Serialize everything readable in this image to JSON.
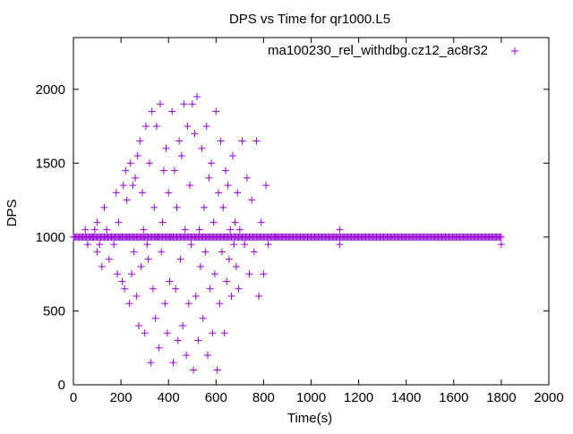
{
  "chart_data": {
    "type": "scatter",
    "title": "DPS vs Time for qr1000.L5",
    "xlabel": "Time(s)",
    "ylabel": "DPS",
    "xlim": [
      0,
      2000
    ],
    "ylim": [
      0,
      2350
    ],
    "xticks": [
      0,
      200,
      400,
      600,
      800,
      1000,
      1200,
      1400,
      1600,
      1800,
      2000
    ],
    "yticks": [
      0,
      500,
      1000,
      1500,
      2000
    ],
    "grid": false,
    "legend_position": "top-right",
    "marker": "+",
    "series": [
      {
        "name": "ma100230_rel_withdbg.cz12_ac8r32",
        "color": "#9400d3",
        "baseline": {
          "x_start": 0,
          "x_end": 1800,
          "x_step": 5,
          "y": 1000
        },
        "points": [
          [
            30,
            1000
          ],
          [
            50,
            1050
          ],
          [
            60,
            950
          ],
          [
            80,
            1000
          ],
          [
            90,
            1050
          ],
          [
            100,
            900
          ],
          [
            100,
            1100
          ],
          [
            110,
            950
          ],
          [
            120,
            800
          ],
          [
            130,
            1200
          ],
          [
            140,
            1050
          ],
          [
            150,
            850
          ],
          [
            160,
            1000
          ],
          [
            170,
            950
          ],
          [
            180,
            1300
          ],
          [
            185,
            750
          ],
          [
            190,
            1100
          ],
          [
            200,
            1000
          ],
          [
            205,
            700
          ],
          [
            210,
            1350
          ],
          [
            215,
            650
          ],
          [
            220,
            1450
          ],
          [
            225,
            1250
          ],
          [
            230,
            1000
          ],
          [
            235,
            550
          ],
          [
            240,
            1500
          ],
          [
            245,
            750
          ],
          [
            250,
            1350
          ],
          [
            255,
            900
          ],
          [
            260,
            1400
          ],
          [
            265,
            600
          ],
          [
            270,
            1550
          ],
          [
            275,
            400
          ],
          [
            280,
            1650
          ],
          [
            285,
            800
          ],
          [
            290,
            1300
          ],
          [
            295,
            1050
          ],
          [
            300,
            350
          ],
          [
            305,
            1750
          ],
          [
            310,
            950
          ],
          [
            315,
            850
          ],
          [
            320,
            1500
          ],
          [
            325,
            150
          ],
          [
            330,
            1850
          ],
          [
            335,
            650
          ],
          [
            340,
            1200
          ],
          [
            345,
            450
          ],
          [
            350,
            1750
          ],
          [
            355,
            1000
          ],
          [
            360,
            250
          ],
          [
            365,
            1900
          ],
          [
            370,
            900
          ],
          [
            375,
            1100
          ],
          [
            380,
            1450
          ],
          [
            385,
            550
          ],
          [
            390,
            1600
          ],
          [
            395,
            350
          ],
          [
            400,
            1300
          ],
          [
            405,
            700
          ],
          [
            410,
            1000
          ],
          [
            415,
            1850
          ],
          [
            420,
            150
          ],
          [
            425,
            1450
          ],
          [
            430,
            650
          ],
          [
            435,
            1200
          ],
          [
            440,
            300
          ],
          [
            445,
            1650
          ],
          [
            450,
            850
          ],
          [
            455,
            1550
          ],
          [
            460,
            400
          ],
          [
            465,
            1900
          ],
          [
            470,
            1050
          ],
          [
            475,
            200
          ],
          [
            480,
            1750
          ],
          [
            485,
            550
          ],
          [
            490,
            1350
          ],
          [
            495,
            950
          ],
          [
            500,
            1900
          ],
          [
            505,
            100
          ],
          [
            510,
            1700
          ],
          [
            515,
            600
          ],
          [
            520,
            1950
          ],
          [
            525,
            300
          ],
          [
            530,
            1050
          ],
          [
            535,
            800
          ],
          [
            540,
            1600
          ],
          [
            545,
            450
          ],
          [
            550,
            1200
          ],
          [
            555,
            900
          ],
          [
            560,
            1750
          ],
          [
            565,
            200
          ],
          [
            570,
            1400
          ],
          [
            575,
            650
          ],
          [
            580,
            1500
          ],
          [
            585,
            350
          ],
          [
            590,
            1100
          ],
          [
            595,
            750
          ],
          [
            600,
            1850
          ],
          [
            605,
            100
          ],
          [
            610,
            1300
          ],
          [
            615,
            550
          ],
          [
            620,
            1650
          ],
          [
            625,
            900
          ],
          [
            630,
            1200
          ],
          [
            635,
            350
          ],
          [
            640,
            1450
          ],
          [
            645,
            700
          ],
          [
            650,
            1350
          ],
          [
            655,
            850
          ],
          [
            660,
            1050
          ],
          [
            665,
            600
          ],
          [
            670,
            1550
          ],
          [
            675,
            950
          ],
          [
            680,
            1100
          ],
          [
            685,
            800
          ],
          [
            690,
            1300
          ],
          [
            695,
            650
          ],
          [
            700,
            1050
          ],
          [
            710,
            1650
          ],
          [
            720,
            950
          ],
          [
            730,
            1400
          ],
          [
            740,
            750
          ],
          [
            750,
            1250
          ],
          [
            760,
            900
          ],
          [
            770,
            1650
          ],
          [
            780,
            600
          ],
          [
            790,
            1100
          ],
          [
            800,
            750
          ],
          [
            810,
            1350
          ],
          [
            820,
            950
          ],
          [
            850,
            1000
          ],
          [
            1120,
            1050
          ],
          [
            1120,
            950
          ],
          [
            1800,
            950
          ]
        ]
      }
    ]
  }
}
